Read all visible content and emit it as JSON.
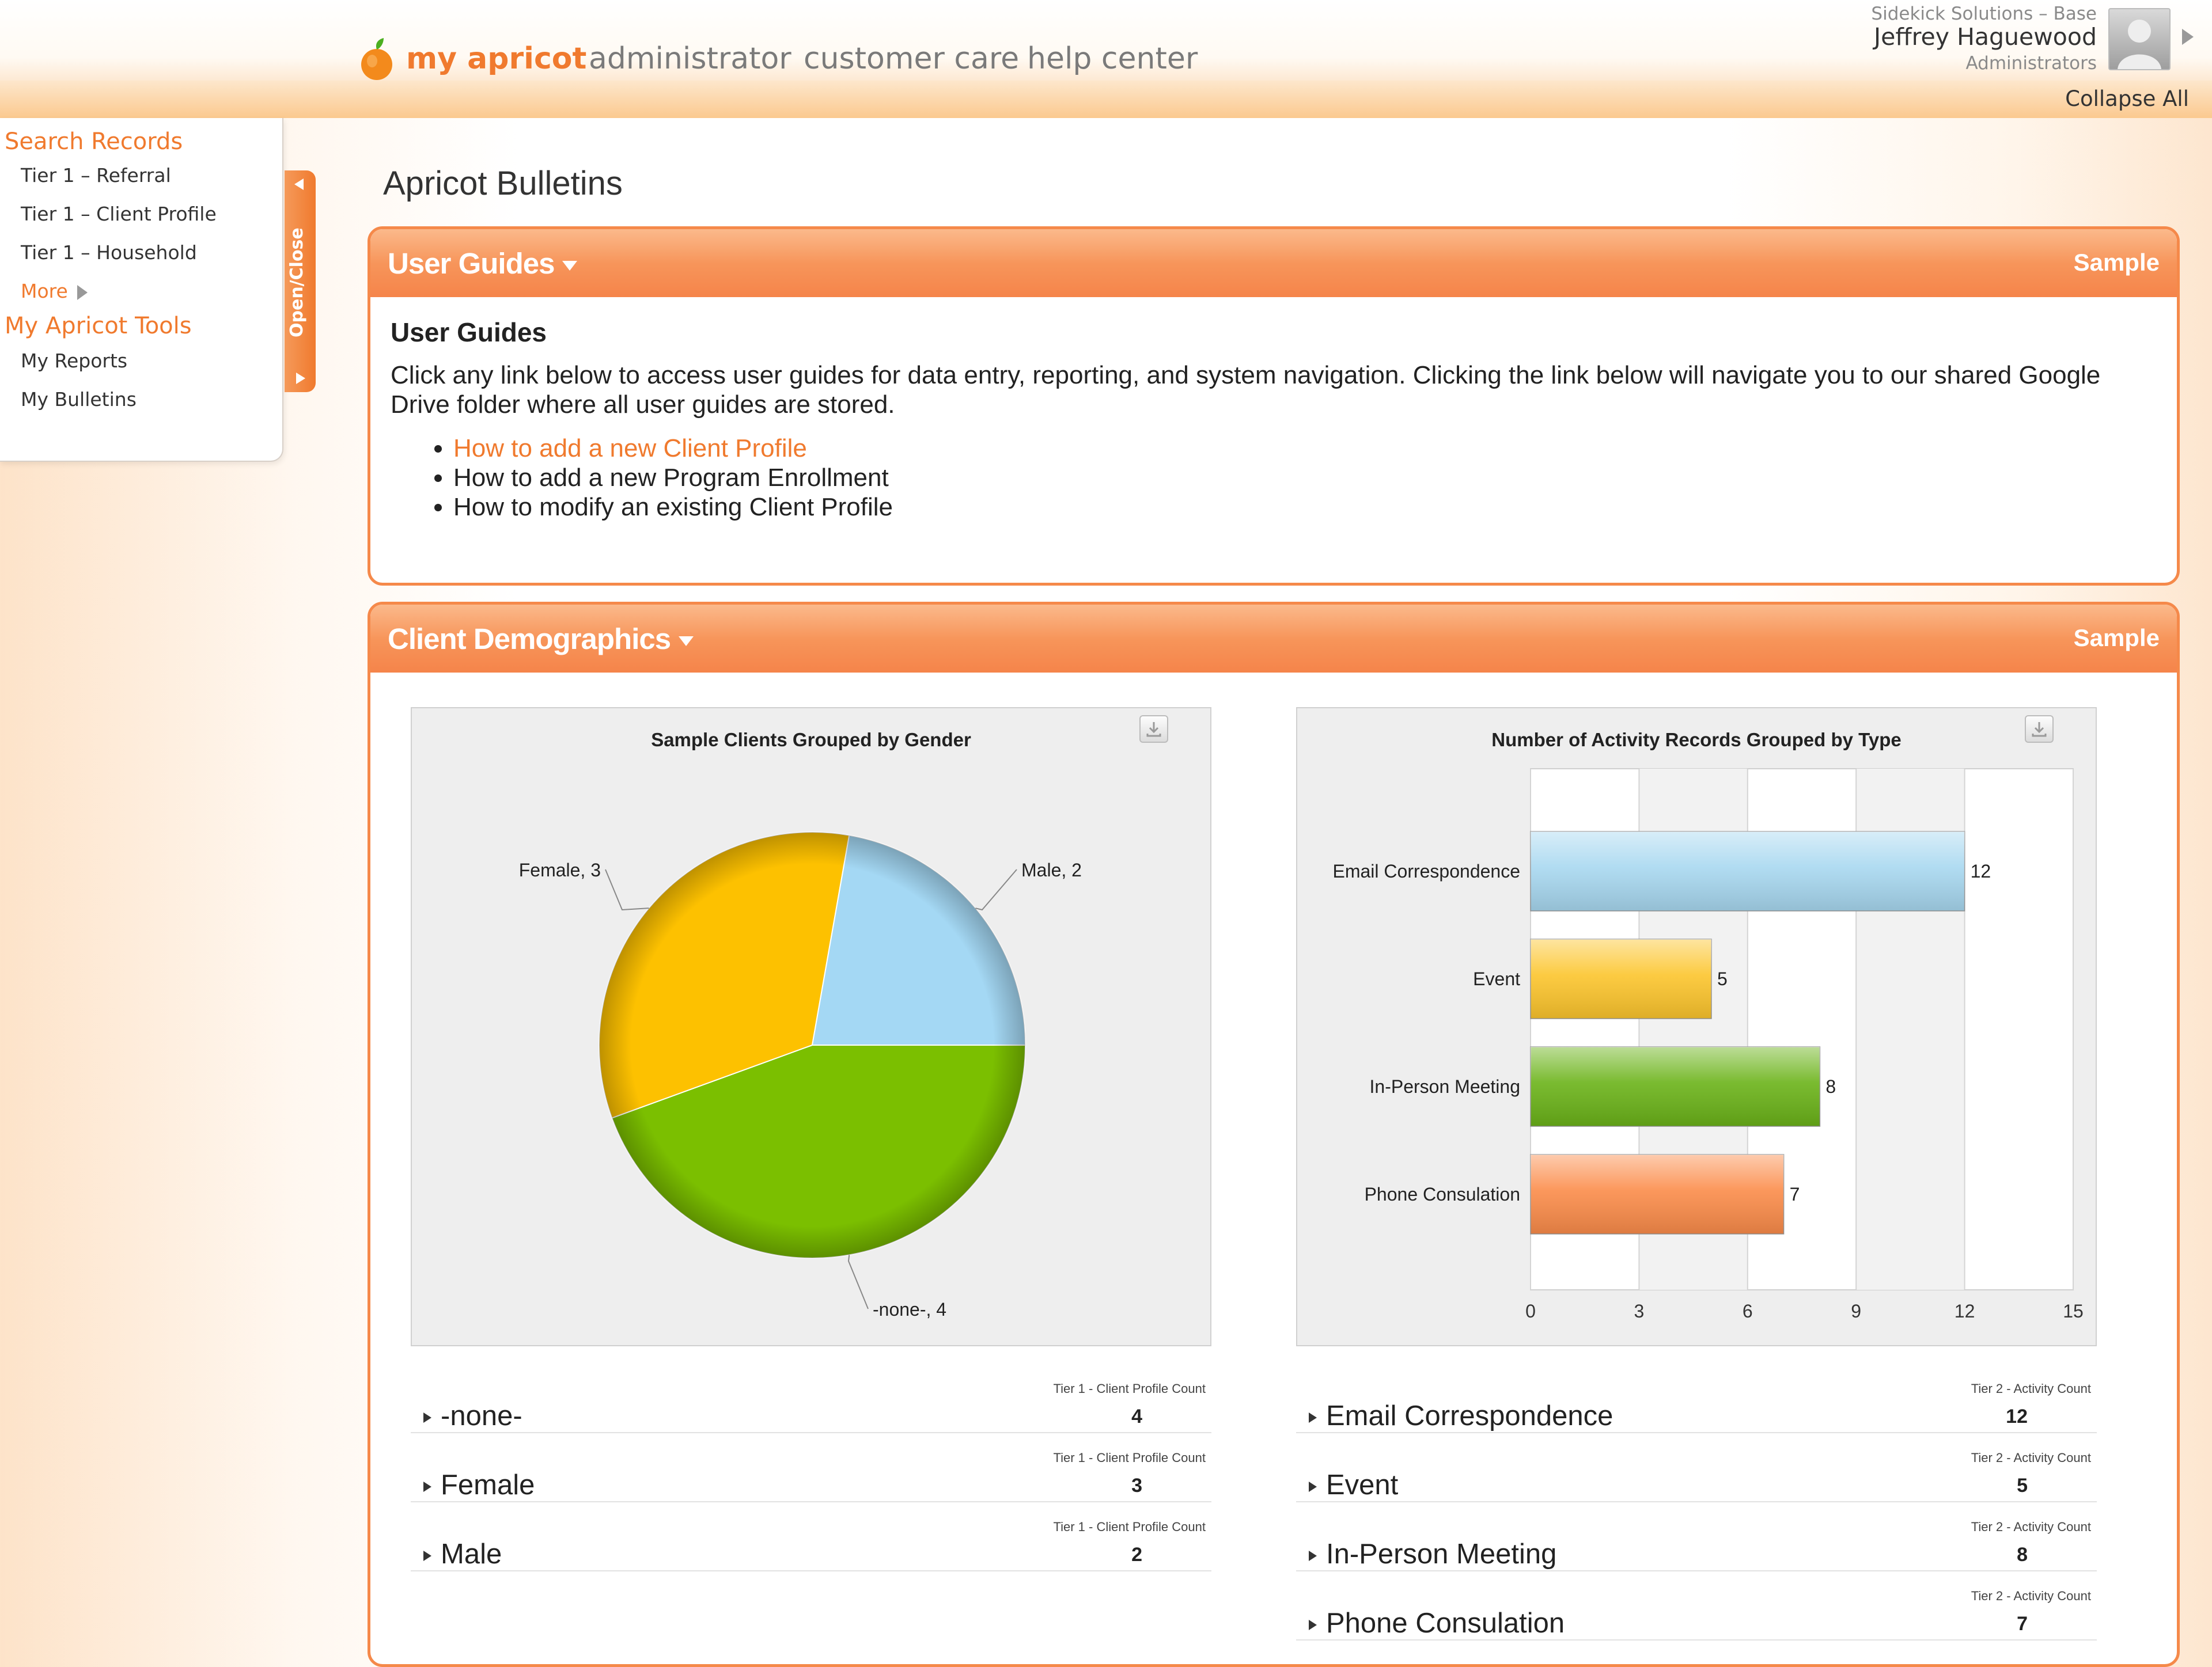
{
  "header": {
    "logo_text": "my apricot",
    "nav": [
      "administrator",
      "customer care",
      "help center"
    ],
    "org": "Sidekick Solutions – Base",
    "user_name": "Jeffrey Haguewood",
    "user_role": "Administrators",
    "collapse_all": "Collapse All"
  },
  "sidebar": {
    "search_heading": "Search Records",
    "search_items": [
      "Tier 1 – Referral",
      "Tier 1 – Client Profile",
      "Tier 1 – Household"
    ],
    "more": "More",
    "tools_heading": "My Apricot Tools",
    "tools_items": [
      "My Reports",
      "My Bulletins"
    ],
    "toggle_label": "Open/Close"
  },
  "page_title": "Apricot Bulletins",
  "user_guides": {
    "panel_title": "User Guides",
    "sample": "Sample",
    "heading": "User Guides",
    "description": "Click any link below to access user guides for data entry, reporting, and system navigation.  Clicking the link below will navigate you to our shared Google Drive folder where all user guides are stored.",
    "links": [
      "How to add a new Client Profile",
      "How to add a new Program Enrollment",
      "How to modify an existing Client Profile"
    ]
  },
  "demographics": {
    "panel_title": "Client Demographics",
    "sample": "Sample",
    "pie_legend_metric": "Tier 1 - Client Profile Count",
    "bar_legend_metric": "Tier 2 - Activity Count"
  },
  "colors": {
    "accent": "#f07a2e",
    "panel_border": "#f5894a",
    "pie": [
      "#7bbf00",
      "#fdc100",
      "#a4d8f4"
    ],
    "bars": [
      "#a8d8f0",
      "#fcc52d",
      "#6bb319",
      "#fb8c4a"
    ]
  },
  "chart_data": [
    {
      "type": "pie",
      "title": "Sample Clients Grouped by Gender",
      "slices": [
        {
          "label": "-none-",
          "value": 4
        },
        {
          "label": "Female",
          "value": 3
        },
        {
          "label": "Male",
          "value": 2
        }
      ],
      "data_labels": [
        "-none-, 4",
        "Female, 3",
        "Male, 2"
      ]
    },
    {
      "type": "bar",
      "orientation": "horizontal",
      "title": "Number of Activity Records Grouped by Type",
      "categories": [
        "Email Correspondence",
        "Event",
        "In-Person Meeting",
        "Phone Consulation"
      ],
      "values": [
        12,
        5,
        8,
        7
      ],
      "xlim": [
        0,
        15
      ],
      "xticks": [
        0,
        3,
        6,
        9,
        12,
        15
      ],
      "grid": true
    }
  ]
}
